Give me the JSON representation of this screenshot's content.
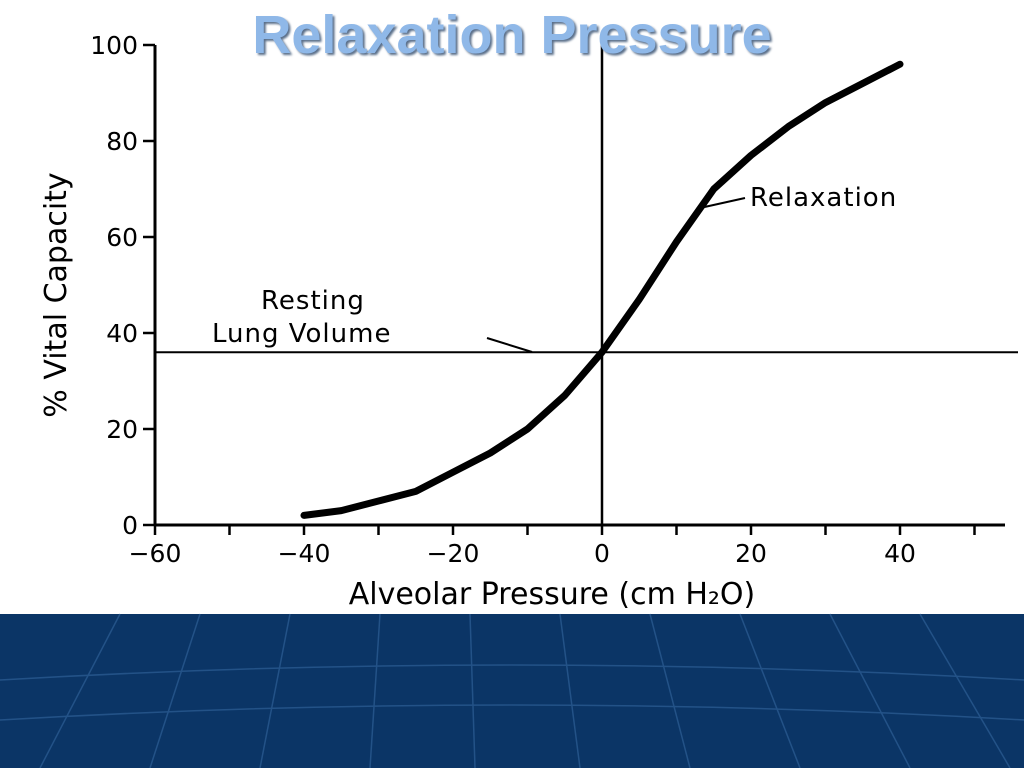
{
  "slide": {
    "title": "Relaxation Pressure",
    "footer_color": "#0b3566",
    "title_color": "#8fb8e8"
  },
  "chart_data": {
    "type": "line",
    "title": "",
    "xlabel": "Alveolar Pressure (cm H₂O)",
    "ylabel": "% Vital Capacity",
    "xlim": [
      -60,
      55
    ],
    "ylim": [
      0,
      100
    ],
    "xticks": [
      -60,
      -40,
      -20,
      0,
      20,
      40
    ],
    "xtick_labels": [
      "−60",
      "−40",
      "−20",
      "0",
      "20",
      "40"
    ],
    "yticks": [
      0,
      20,
      40,
      60,
      80,
      100
    ],
    "ytick_labels": [
      "0",
      "20",
      "40",
      "60",
      "80",
      "100"
    ],
    "grid": false,
    "series": [
      {
        "name": "Relaxation",
        "x": [
          -40,
          -35,
          -30,
          -25,
          -20,
          -15,
          -10,
          -5,
          0,
          5,
          10,
          15,
          20,
          25,
          30,
          35,
          40
        ],
        "y": [
          2,
          3,
          5,
          7,
          11,
          15,
          20,
          27,
          36,
          47,
          59,
          70,
          77,
          83,
          88,
          92,
          96
        ]
      }
    ],
    "reference_lines": {
      "resting_volume_y": 36,
      "zero_pressure_x": 0
    },
    "annotations": {
      "relaxation": "Relaxation",
      "resting_line1": "Resting",
      "resting_line2": "Lung Volume"
    }
  }
}
